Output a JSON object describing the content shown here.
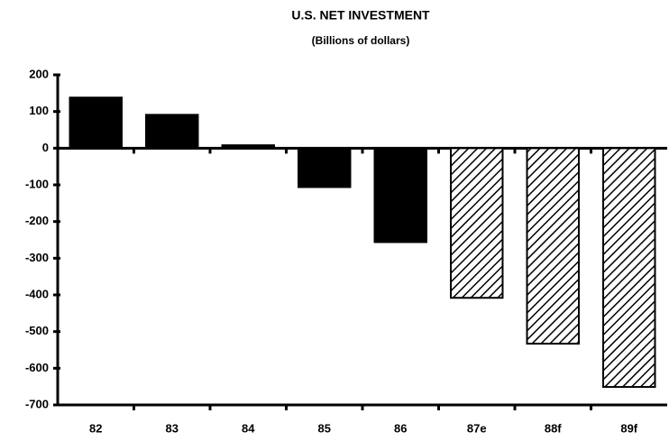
{
  "chart_data": {
    "type": "bar",
    "title": "U.S. NET INVESTMENT",
    "subtitle": "(Billions of dollars)",
    "categories": [
      "82",
      "83",
      "84",
      "85",
      "86",
      "87e",
      "88f",
      "89f"
    ],
    "values": [
      138,
      91,
      8,
      -106,
      -256,
      -408,
      -533,
      -651
    ],
    "bar_styles": [
      "solid",
      "solid",
      "solid",
      "solid",
      "solid",
      "hatched",
      "hatched",
      "hatched"
    ],
    "color": "#000000",
    "ylim": [
      -700,
      200
    ],
    "yticks": [
      -700,
      -600,
      -500,
      -400,
      -300,
      -200,
      -100,
      0,
      100,
      200
    ],
    "grid": false
  }
}
